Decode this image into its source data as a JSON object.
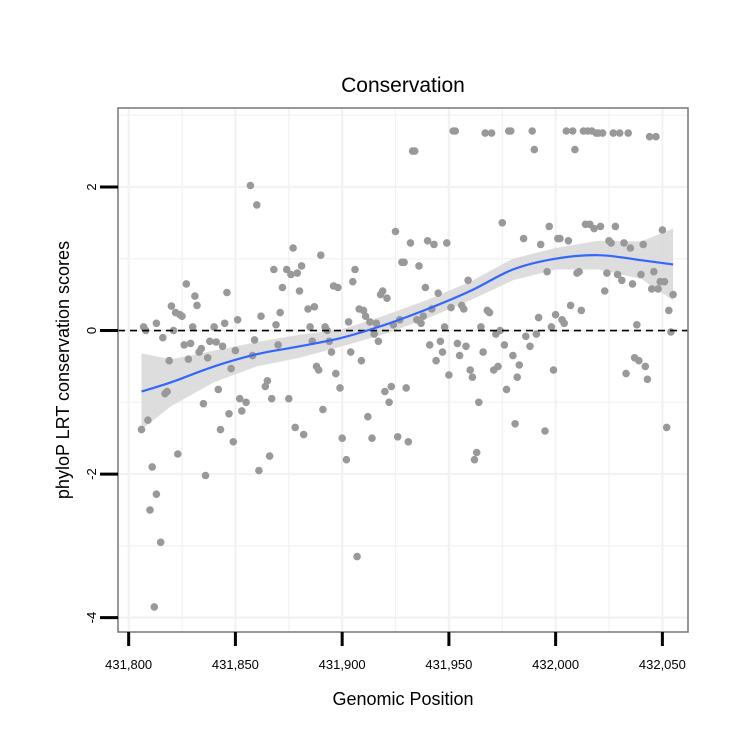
{
  "chart_data": {
    "type": "scatter",
    "title": "Conservation",
    "xlabel": "Genomic Position",
    "ylabel": "phyloP LRT conservation scores",
    "xlim": [
      431795,
      432062
    ],
    "ylim": [
      -4.2,
      3.1
    ],
    "x_ticks": [
      431800,
      431850,
      431900,
      431950,
      432000,
      432050
    ],
    "x_tick_labels": [
      "431,800",
      "431,850",
      "431,900",
      "431,950",
      "432,000",
      "432,050"
    ],
    "y_ticks": [
      -4,
      -2,
      0,
      2
    ],
    "y_tick_labels": [
      "-4",
      "-2",
      "0",
      "2"
    ],
    "grid": true,
    "reference_line": {
      "y": 0,
      "style": "dashed"
    },
    "colors": {
      "points": "#999999",
      "trend": "#3366ff",
      "ribbon": "#d9d9d9",
      "panel_border": "#7f7f7f",
      "grid": "#f2f2f2"
    },
    "points": [
      [
        431806,
        -1.38
      ],
      [
        431807,
        0.05
      ],
      [
        431808,
        0.0
      ],
      [
        431809,
        -1.25
      ],
      [
        431810,
        -2.5
      ],
      [
        431811,
        -1.9
      ],
      [
        431812,
        -3.85
      ],
      [
        431813,
        -2.28
      ],
      [
        431813,
        0.1
      ],
      [
        431815,
        -2.95
      ],
      [
        431816,
        -0.1
      ],
      [
        431817,
        -0.88
      ],
      [
        431818,
        -0.85
      ],
      [
        431819,
        -0.42
      ],
      [
        431820,
        0.34
      ],
      [
        431821,
        0.0
      ],
      [
        431822,
        0.25
      ],
      [
        431823,
        -1.72
      ],
      [
        431824,
        0.22
      ],
      [
        431825,
        0.2
      ],
      [
        431826,
        -0.2
      ],
      [
        431827,
        0.65
      ],
      [
        431828,
        -0.4
      ],
      [
        431829,
        -0.18
      ],
      [
        431830,
        0.05
      ],
      [
        431831,
        0.48
      ],
      [
        431832,
        0.35
      ],
      [
        431833,
        -0.3
      ],
      [
        431834,
        -0.25
      ],
      [
        431835,
        -1.02
      ],
      [
        431836,
        -2.02
      ],
      [
        431837,
        -0.38
      ],
      [
        431838,
        -0.15
      ],
      [
        431840,
        0.05
      ],
      [
        431841,
        -0.16
      ],
      [
        431842,
        -0.82
      ],
      [
        431843,
        -1.38
      ],
      [
        431844,
        -0.22
      ],
      [
        431845,
        0.1
      ],
      [
        431846,
        0.53
      ],
      [
        431847,
        -1.16
      ],
      [
        431848,
        -0.53
      ],
      [
        431849,
        -1.55
      ],
      [
        431850,
        -0.28
      ],
      [
        431851,
        0.15
      ],
      [
        431852,
        -0.95
      ],
      [
        431853,
        -1.12
      ],
      [
        431855,
        -1.0
      ],
      [
        431857,
        2.02
      ],
      [
        431858,
        -0.35
      ],
      [
        431859,
        -0.13
      ],
      [
        431860,
        1.75
      ],
      [
        431861,
        -1.95
      ],
      [
        431862,
        0.2
      ],
      [
        431864,
        -0.78
      ],
      [
        431865,
        -0.7
      ],
      [
        431866,
        -1.75
      ],
      [
        431867,
        -0.95
      ],
      [
        431868,
        0.85
      ],
      [
        431869,
        0.08
      ],
      [
        431870,
        -0.2
      ],
      [
        431871,
        0.25
      ],
      [
        431872,
        0.6
      ],
      [
        431874,
        0.85
      ],
      [
        431875,
        -0.95
      ],
      [
        431876,
        0.78
      ],
      [
        431877,
        1.15
      ],
      [
        431878,
        -1.35
      ],
      [
        431879,
        0.8
      ],
      [
        431880,
        0.55
      ],
      [
        431881,
        0.9
      ],
      [
        431882,
        -1.45
      ],
      [
        431884,
        0.3
      ],
      [
        431885,
        0.05
      ],
      [
        431886,
        -0.15
      ],
      [
        431887,
        0.33
      ],
      [
        431888,
        -0.5
      ],
      [
        431889,
        -0.55
      ],
      [
        431890,
        1.05
      ],
      [
        431891,
        -1.1
      ],
      [
        431892,
        0.05
      ],
      [
        431893,
        0.0
      ],
      [
        431894,
        -0.15
      ],
      [
        431895,
        -0.3
      ],
      [
        431896,
        0.62
      ],
      [
        431897,
        -0.6
      ],
      [
        431898,
        0.6
      ],
      [
        431899,
        -0.8
      ],
      [
        431900,
        -1.5
      ],
      [
        431902,
        -1.8
      ],
      [
        431903,
        0.12
      ],
      [
        431904,
        -0.3
      ],
      [
        431905,
        0.68
      ],
      [
        431906,
        0.85
      ],
      [
        431907,
        -3.15
      ],
      [
        431908,
        0.3
      ],
      [
        431909,
        -0.42
      ],
      [
        431910,
        0.28
      ],
      [
        431911,
        0.2
      ],
      [
        431912,
        -1.2
      ],
      [
        431913,
        0.12
      ],
      [
        431914,
        -1.5
      ],
      [
        431915,
        -0.05
      ],
      [
        431916,
        0.1
      ],
      [
        431917,
        -0.15
      ],
      [
        431918,
        0.5
      ],
      [
        431919,
        0.55
      ],
      [
        431920,
        -0.85
      ],
      [
        431921,
        0.45
      ],
      [
        431922,
        -1.0
      ],
      [
        431923,
        -0.78
      ],
      [
        431924,
        0.08
      ],
      [
        431925,
        1.38
      ],
      [
        431926,
        -1.48
      ],
      [
        431927,
        0.15
      ],
      [
        431928,
        0.95
      ],
      [
        431929,
        0.95
      ],
      [
        431930,
        -0.8
      ],
      [
        431931,
        -1.55
      ],
      [
        431932,
        1.22
      ],
      [
        431933,
        2.5
      ],
      [
        431934,
        2.5
      ],
      [
        431935,
        0.15
      ],
      [
        431936,
        0.9
      ],
      [
        431937,
        0.1
      ],
      [
        431938,
        0.2
      ],
      [
        431939,
        0.6
      ],
      [
        431940,
        1.25
      ],
      [
        431941,
        -0.2
      ],
      [
        431942,
        0.3
      ],
      [
        431943,
        1.2
      ],
      [
        431944,
        -0.42
      ],
      [
        431945,
        0.52
      ],
      [
        431946,
        -0.15
      ],
      [
        431947,
        -0.3
      ],
      [
        431948,
        0.05
      ],
      [
        431949,
        1.22
      ],
      [
        431950,
        -0.62
      ],
      [
        431951,
        0.32
      ],
      [
        431952,
        2.78
      ],
      [
        431953,
        2.78
      ],
      [
        431954,
        -0.18
      ],
      [
        431955,
        -0.35
      ],
      [
        431956,
        0.35
      ],
      [
        431957,
        0.3
      ],
      [
        431958,
        -0.22
      ],
      [
        431959,
        0.7
      ],
      [
        431960,
        -0.55
      ],
      [
        431961,
        -0.65
      ],
      [
        431962,
        -1.8
      ],
      [
        431963,
        -1.7
      ],
      [
        431964,
        -1.0
      ],
      [
        431965,
        0.05
      ],
      [
        431966,
        -0.3
      ],
      [
        431967,
        2.75
      ],
      [
        431968,
        0.28
      ],
      [
        431969,
        0.25
      ],
      [
        431970,
        2.75
      ],
      [
        431971,
        -0.55
      ],
      [
        431972,
        -0.05
      ],
      [
        431973,
        -0.5
      ],
      [
        431974,
        0.0
      ],
      [
        431975,
        1.5
      ],
      [
        431976,
        -0.2
      ],
      [
        431977,
        -0.82
      ],
      [
        431978,
        2.78
      ],
      [
        431979,
        2.78
      ],
      [
        431980,
        -0.35
      ],
      [
        431981,
        -1.3
      ],
      [
        431982,
        -0.65
      ],
      [
        431983,
        -0.48
      ],
      [
        431985,
        1.28
      ],
      [
        431986,
        -0.08
      ],
      [
        431988,
        -0.22
      ],
      [
        431989,
        2.78
      ],
      [
        431990,
        2.52
      ],
      [
        431991,
        -0.05
      ],
      [
        431992,
        0.18
      ],
      [
        431993,
        1.2
      ],
      [
        431995,
        -1.4
      ],
      [
        431996,
        0.82
      ],
      [
        431997,
        1.45
      ],
      [
        431998,
        0.05
      ],
      [
        431999,
        -0.55
      ],
      [
        432000,
        0.22
      ],
      [
        432001,
        1.28
      ],
      [
        432002,
        1.28
      ],
      [
        432003,
        0.15
      ],
      [
        432004,
        0.1
      ],
      [
        432005,
        2.78
      ],
      [
        432006,
        1.25
      ],
      [
        432007,
        0.35
      ],
      [
        432008,
        2.78
      ],
      [
        432009,
        2.52
      ],
      [
        432010,
        0.8
      ],
      [
        432011,
        0.82
      ],
      [
        432012,
        0.28
      ],
      [
        432013,
        2.78
      ],
      [
        432014,
        1.48
      ],
      [
        432015,
        2.78
      ],
      [
        432016,
        1.48
      ],
      [
        432017,
        2.78
      ],
      [
        432018,
        1.42
      ],
      [
        432019,
        2.75
      ],
      [
        432020,
        2.75
      ],
      [
        432021,
        1.45
      ],
      [
        432022,
        2.75
      ],
      [
        432023,
        0.55
      ],
      [
        432024,
        0.8
      ],
      [
        432025,
        1.25
      ],
      [
        432026,
        1.22
      ],
      [
        432027,
        2.75
      ],
      [
        432028,
        1.45
      ],
      [
        432029,
        0.78
      ],
      [
        432030,
        2.75
      ],
      [
        432031,
        0.7
      ],
      [
        432032,
        1.22
      ],
      [
        432033,
        -0.6
      ],
      [
        432034,
        2.75
      ],
      [
        432035,
        1.15
      ],
      [
        432036,
        0.65
      ],
      [
        432037,
        -0.38
      ],
      [
        432038,
        0.08
      ],
      [
        432039,
        -0.42
      ],
      [
        432040,
        0.78
      ],
      [
        432041,
        1.2
      ],
      [
        432042,
        -0.5
      ],
      [
        432043,
        -0.68
      ],
      [
        432044,
        2.7
      ],
      [
        432045,
        0.58
      ],
      [
        432046,
        0.82
      ],
      [
        432047,
        2.7
      ],
      [
        432048,
        0.58
      ],
      [
        432049,
        0.68
      ],
      [
        432050,
        1.4
      ],
      [
        432051,
        0.68
      ],
      [
        432052,
        -1.35
      ],
      [
        432053,
        0.28
      ],
      [
        432054,
        -0.02
      ],
      [
        432055,
        0.5
      ]
    ],
    "smooth_line": {
      "x": [
        431806,
        431820,
        431840,
        431860,
        431880,
        431900,
        431920,
        431940,
        431960,
        431980,
        432000,
        432020,
        432040,
        432055
      ],
      "y": [
        -0.85,
        -0.72,
        -0.5,
        -0.33,
        -0.22,
        -0.1,
        0.08,
        0.3,
        0.55,
        0.85,
        1.0,
        1.05,
        0.98,
        0.92
      ],
      "ci_low": [
        -1.38,
        -1.05,
        -0.72,
        -0.5,
        -0.38,
        -0.22,
        -0.05,
        0.17,
        0.42,
        0.7,
        0.85,
        0.85,
        0.72,
        0.42
      ],
      "ci_high": [
        -0.32,
        -0.4,
        -0.28,
        -0.16,
        -0.06,
        0.02,
        0.21,
        0.43,
        0.68,
        1.0,
        1.15,
        1.25,
        1.24,
        1.42
      ]
    }
  }
}
